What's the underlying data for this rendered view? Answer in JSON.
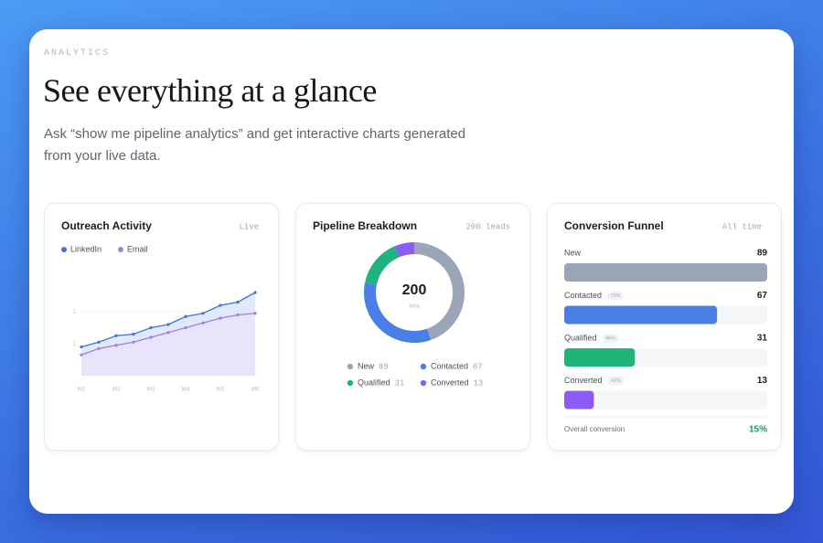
{
  "header": {
    "eyebrow": "ANALYTICS",
    "title": "See everything at a glance",
    "subtitle": "Ask “show me pipeline analytics” and get interactive charts generated from your live data."
  },
  "chart_data": [
    {
      "type": "line",
      "title": "Outreach Activity",
      "badge": "Live",
      "categories": [
        "W1",
        null,
        "W2",
        null,
        "W3",
        null,
        "W4",
        null,
        "W5",
        null,
        "W6"
      ],
      "series": [
        {
          "name": "LinkedIn",
          "color": "#3f72e0",
          "values": [
            0.9,
            1.05,
            1.25,
            1.3,
            1.5,
            1.6,
            1.85,
            1.95,
            2.2,
            2.3,
            2.6
          ]
        },
        {
          "name": "Email",
          "color": "#9b7ee8",
          "values": [
            0.65,
            0.85,
            0.95,
            1.05,
            1.2,
            1.35,
            1.5,
            1.65,
            1.8,
            1.9,
            1.95
          ]
        }
      ],
      "ylim": [
        0,
        3
      ],
      "yticks": [
        1,
        2
      ]
    },
    {
      "type": "pie",
      "title": "Pipeline Breakdown",
      "badge": "200 leads",
      "total": 200,
      "total_label": "total",
      "categories": [
        "New",
        "Contacted",
        "Qualified",
        "Converted"
      ],
      "values": [
        89,
        67,
        31,
        13
      ],
      "colors": [
        "#9aa5b8",
        "#4a7fe8",
        "#1fb57a",
        "#8b5cf6"
      ]
    },
    {
      "type": "funnel",
      "title": "Conversion Funnel",
      "badge": "All time",
      "categories": [
        "New",
        "Contacted",
        "Qualified",
        "Converted"
      ],
      "values": [
        89,
        67,
        31,
        13
      ],
      "step_labels": [
        null,
        "75%",
        "46%",
        "42%"
      ],
      "colors": [
        "#9aa5b8",
        "#4a7fe8",
        "#1fb57a",
        "#8b5cf6"
      ],
      "xlim": [
        0,
        89
      ],
      "overall_label": "Overall conversion",
      "overall_value": "15%"
    }
  ]
}
